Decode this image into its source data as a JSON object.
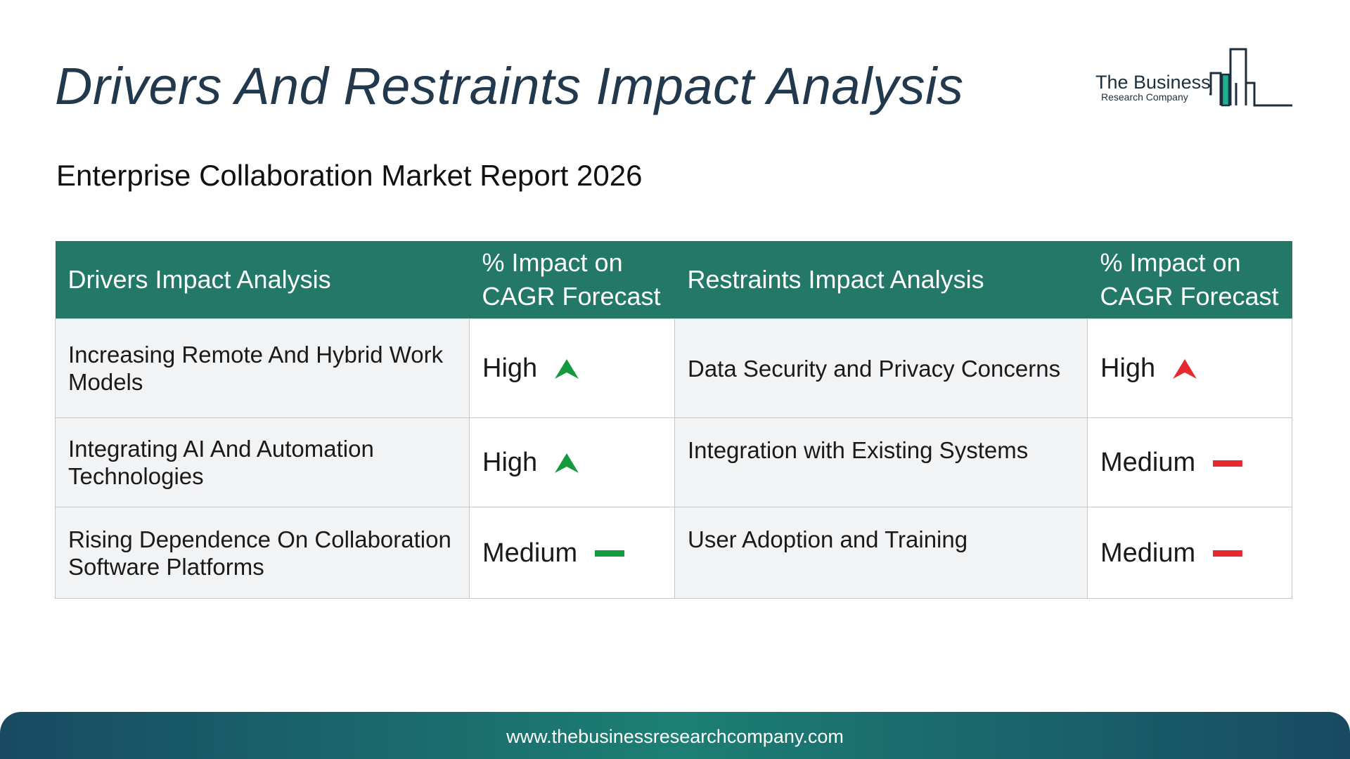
{
  "page": {
    "title": "Drivers And Restraints Impact Analysis",
    "subtitle": "Enterprise Collaboration Market Report 2026"
  },
  "logo": {
    "line1": "The Business",
    "line2": "Research Company"
  },
  "table": {
    "headers": {
      "drivers": "Drivers Impact Analysis",
      "drivers_impact": "% Impact on CAGR Forecast",
      "restraints": "Restraints Impact Analysis",
      "restraints_impact": "% Impact on CAGR Forecast"
    },
    "rows": [
      {
        "driver": "Increasing Remote And Hybrid Work Models",
        "driver_impact": "High",
        "driver_indicator": "up-arrow-icon",
        "restraint": "Data Security and Privacy Concerns",
        "restraint_impact": "High",
        "restraint_indicator": "up-arrow-icon"
      },
      {
        "driver": "Integrating AI And Automation Technologies",
        "driver_impact": "High",
        "driver_indicator": "up-arrow-icon",
        "restraint": "Integration with Existing Systems",
        "restraint_impact": "Medium",
        "restraint_indicator": "dash-icon"
      },
      {
        "driver": "Rising Dependence On Collaboration Software Platforms",
        "driver_impact": "Medium",
        "driver_indicator": "dash-icon",
        "restraint": "User Adoption and Training",
        "restraint_impact": "Medium",
        "restraint_indicator": "dash-icon"
      }
    ]
  },
  "colors": {
    "header_bg": "#237867",
    "title_color": "#22394d",
    "driver_color": "#149a3e",
    "restraint_color": "#e62a2f"
  },
  "footer": {
    "url": "www.thebusinessresearchcompany.com"
  }
}
